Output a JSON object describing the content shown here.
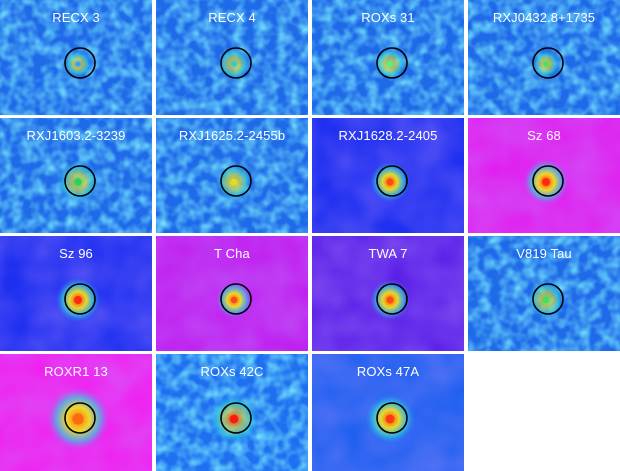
{
  "panels": [
    {
      "label": "RECX 3",
      "bg": "#1f6ae8",
      "style": "noise",
      "core": "#3aa0f0",
      "core_r": 6
    },
    {
      "label": "RECX 4",
      "bg": "#1f6ae8",
      "style": "noise",
      "core": "#40c8c8",
      "core_r": 7
    },
    {
      "label": "ROXs 31",
      "bg": "#1f6ae8",
      "style": "noise",
      "core": "#5cf080",
      "core_r": 7
    },
    {
      "label": "RXJ0432.8+1735",
      "bg": "#1f6ae8",
      "style": "noise",
      "core": "#4ae060",
      "core_r": 6
    },
    {
      "label": "RXJ1603.2-3239",
      "bg": "#1f6ae8",
      "style": "noise",
      "core": "#2ad060",
      "core_r": 9
    },
    {
      "label": "RXJ1625.2-2455b",
      "bg": "#1f6ae8",
      "style": "noise",
      "core": "#e0e020",
      "core_r": 8
    },
    {
      "label": "RXJ1628.2-2405",
      "bg": "#1e2ff0",
      "style": "smooth",
      "core": "#ff4a10",
      "core_r": 9
    },
    {
      "label": "Sz 68",
      "bg": "#e020f0",
      "style": "smooth",
      "core": "#ff2a10",
      "core_r": 10
    },
    {
      "label": "Sz 96",
      "bg": "#1e2ff0",
      "style": "smooth",
      "core": "#ff2a10",
      "core_r": 10
    },
    {
      "label": "T Cha",
      "bg": "#c020f0",
      "style": "smooth",
      "core": "#ff4a10",
      "core_r": 8
    },
    {
      "label": "TWA 7",
      "bg": "#5a20e8",
      "style": "smooth",
      "core": "#ff4a10",
      "core_r": 9
    },
    {
      "label": "V819 Tau",
      "bg": "#1f6ae8",
      "style": "noise",
      "core": "#40e060",
      "core_r": 8
    },
    {
      "label": "ROXR1 13",
      "bg": "#f020f0",
      "style": "smooth",
      "core": "#ff6a10",
      "core_r": 14
    },
    {
      "label": "ROXs 42C",
      "bg": "#1f70f0",
      "style": "noise",
      "core": "#ff1a10",
      "core_r": 11
    },
    {
      "label": "ROXs 47A",
      "bg": "#1f60f0",
      "style": "smooth",
      "core": "#ff3a10",
      "core_r": 11
    }
  ],
  "colors": {
    "separator": "#ffffff",
    "label_text": "#ffffff",
    "circle": "#000000"
  }
}
